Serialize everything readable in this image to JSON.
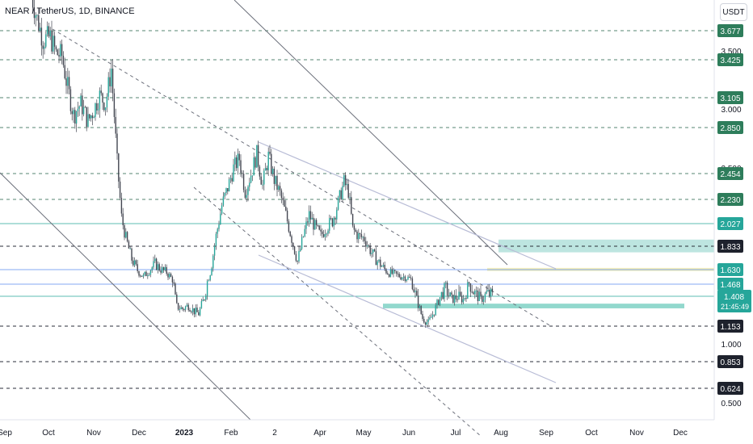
{
  "header": {
    "symbol_line": "NEAR / TetherUS, 1D, BINANCE",
    "currency_button": "USDT"
  },
  "colors": {
    "up": "#26a69a",
    "down": "#ef5350",
    "candle": "#434651",
    "level_line": "#1e5c42",
    "level_label": "#2e7d5b",
    "dark_label": "#1e222d",
    "support_zone": "#7fd1c4",
    "resistance_zone": "#b2e0db",
    "yellow_zone": "#f2ecb0",
    "blue_line": "#5b8def",
    "channel": "#6b6f7a",
    "light_channel": "#b8bcd6"
  },
  "chart_data": {
    "type": "candlestick",
    "title": "NEAR / TetherUS, 1D, BINANCE",
    "x_tick_labels": [
      "Sep",
      "Oct",
      "Nov",
      "Dec",
      "2023",
      "Feb",
      "2",
      "Apr",
      "May",
      "Jun",
      "Jul",
      "Aug",
      "Sep",
      "Oct",
      "Nov",
      "Dec"
    ],
    "y_axis_labels": [
      "3.500",
      "3.000",
      "2.500",
      "1.000",
      "0.500"
    ],
    "current_price": {
      "value": "1.408",
      "countdown": "21:45:49"
    },
    "horizontal_levels": [
      {
        "value": "3.677",
        "style": "dashed-green"
      },
      {
        "value": "3.425",
        "style": "dashed-green"
      },
      {
        "value": "3.105",
        "style": "dashed-green"
      },
      {
        "value": "2.850",
        "style": "dashed-green"
      },
      {
        "value": "2.454",
        "style": "dashed-green"
      },
      {
        "value": "2.230",
        "style": "dashed-green"
      },
      {
        "value": "2.027",
        "style": "solid-teal"
      },
      {
        "value": "1.833",
        "style": "dashed-dark"
      },
      {
        "value": "1.630",
        "style": "solid-blue"
      },
      {
        "value": "1.468",
        "style": "solid-blue"
      },
      {
        "value": "1.153",
        "style": "dashed-dark"
      },
      {
        "value": "0.853",
        "style": "dashed-dark"
      },
      {
        "value": "0.624",
        "style": "dashed-dark"
      }
    ],
    "zones": [
      {
        "name": "resistance-zone",
        "from": 1.78,
        "to": 1.89
      },
      {
        "name": "yellow-zone",
        "from": 1.615,
        "to": 1.645
      },
      {
        "name": "support-zone",
        "from": 1.305,
        "to": 1.345
      }
    ],
    "price_path": [
      [
        0,
        4.05
      ],
      [
        5,
        3.78
      ],
      [
        9,
        3.6
      ],
      [
        14,
        3.62
      ],
      [
        18,
        3.48
      ],
      [
        22,
        3.46
      ],
      [
        25,
        3.25
      ],
      [
        30,
        2.95
      ],
      [
        35,
        3.05
      ],
      [
        40,
        2.9
      ],
      [
        44,
        3.0
      ],
      [
        48,
        3.12
      ],
      [
        52,
        3.05
      ],
      [
        56,
        3.35
      ],
      [
        60,
        2.55
      ],
      [
        63,
        2.08
      ],
      [
        66,
        1.9
      ],
      [
        70,
        1.72
      ],
      [
        74,
        1.62
      ],
      [
        78,
        1.55
      ],
      [
        82,
        1.62
      ],
      [
        86,
        1.68
      ],
      [
        90,
        1.63
      ],
      [
        94,
        1.6
      ],
      [
        98,
        1.52
      ],
      [
        101,
        1.32
      ],
      [
        105,
        1.3
      ],
      [
        109,
        1.33
      ],
      [
        113,
        1.28
      ],
      [
        116,
        1.26
      ],
      [
        120,
        1.4
      ],
      [
        124,
        1.6
      ],
      [
        128,
        1.92
      ],
      [
        132,
        2.18
      ],
      [
        136,
        2.33
      ],
      [
        140,
        2.5
      ],
      [
        144,
        2.58
      ],
      [
        148,
        2.3
      ],
      [
        152,
        2.45
      ],
      [
        156,
        2.62
      ],
      [
        160,
        2.35
      ],
      [
        164,
        2.6
      ],
      [
        168,
        2.4
      ],
      [
        172,
        2.28
      ],
      [
        176,
        2.1
      ],
      [
        180,
        1.9
      ],
      [
        184,
        1.7
      ],
      [
        188,
        1.92
      ],
      [
        192,
        2.1
      ],
      [
        196,
        2.0
      ],
      [
        200,
        1.92
      ],
      [
        204,
        2.0
      ],
      [
        208,
        2.05
      ],
      [
        212,
        2.2
      ],
      [
        216,
        2.38
      ],
      [
        219,
        2.3
      ],
      [
        222,
        1.98
      ],
      [
        226,
        1.92
      ],
      [
        230,
        1.9
      ],
      [
        234,
        1.8
      ],
      [
        238,
        1.72
      ],
      [
        242,
        1.66
      ],
      [
        246,
        1.6
      ],
      [
        250,
        1.58
      ],
      [
        254,
        1.56
      ],
      [
        258,
        1.55
      ],
      [
        262,
        1.52
      ],
      [
        266,
        1.38
      ],
      [
        270,
        1.22
      ],
      [
        274,
        1.18
      ],
      [
        278,
        1.28
      ],
      [
        282,
        1.4
      ],
      [
        286,
        1.45
      ],
      [
        290,
        1.38
      ],
      [
        294,
        1.4
      ],
      [
        298,
        1.38
      ],
      [
        302,
        1.48
      ],
      [
        306,
        1.42
      ],
      [
        310,
        1.38
      ],
      [
        314,
        1.42
      ],
      [
        318,
        1.408
      ]
    ]
  }
}
